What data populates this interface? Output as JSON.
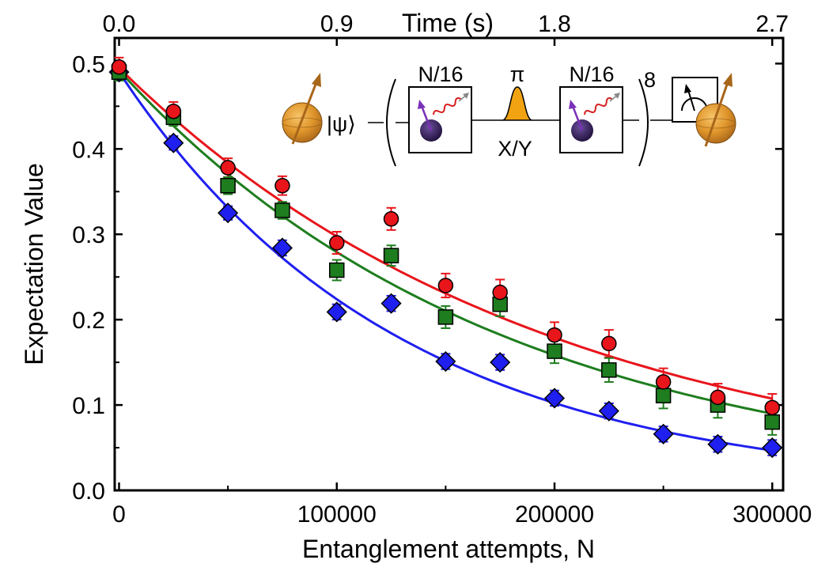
{
  "chart_data": {
    "type": "scatter",
    "xlabel": "Entanglement attempts, N",
    "ylabel": "Expectation Value",
    "top_xlabel": "Time (s)",
    "xlim": [
      -2000,
      305000
    ],
    "ylim": [
      0.0,
      0.53
    ],
    "x_ticks": [
      0,
      100000,
      200000,
      300000
    ],
    "x_tick_labels": [
      "0",
      "100000",
      "200000",
      "300000"
    ],
    "y_ticks": [
      0.0,
      0.1,
      0.2,
      0.3,
      0.4,
      0.5
    ],
    "y_tick_labels": [
      "0.0",
      "0.1",
      "0.2",
      "0.3",
      "0.4",
      "0.5"
    ],
    "top_ticks": [
      0,
      100000,
      200000,
      300000
    ],
    "top_tick_labels": [
      "0.0",
      "0.9",
      "1.8",
      "2.7"
    ],
    "grid": false,
    "x": [
      0,
      25000,
      50000,
      75000,
      100000,
      125000,
      150000,
      175000,
      200000,
      225000,
      250000,
      275000,
      300000
    ],
    "series": [
      {
        "color": "#e8151b",
        "marker": "circle",
        "values": [
          0.496,
          0.444,
          0.378,
          0.357,
          0.29,
          0.318,
          0.24,
          0.232,
          0.182,
          0.172,
          0.127,
          0.109,
          0.097
        ],
        "errors": [
          0.011,
          0.011,
          0.011,
          0.011,
          0.013,
          0.013,
          0.014,
          0.015,
          0.015,
          0.016,
          0.016,
          0.016,
          0.016
        ],
        "fit": {
          "start": 0.495,
          "rate": 5.09e-06
        }
      },
      {
        "color": "#1e7d1e",
        "marker": "square",
        "values": [
          0.49,
          0.437,
          0.357,
          0.328,
          0.258,
          0.275,
          0.203,
          0.218,
          0.163,
          0.141,
          0.111,
          0.1,
          0.08
        ],
        "errors": [
          0.01,
          0.01,
          0.01,
          0.01,
          0.012,
          0.012,
          0.013,
          0.014,
          0.014,
          0.014,
          0.015,
          0.015,
          0.015
        ],
        "fit": {
          "start": 0.492,
          "rate": 5.67e-06
        }
      },
      {
        "color": "#1f1ff0",
        "marker": "diamond",
        "values": [
          0.49,
          0.407,
          0.325,
          0.284,
          0.209,
          0.219,
          0.151,
          0.15,
          0.108,
          0.093,
          0.066,
          0.054,
          0.05
        ],
        "errors": [
          0.008,
          0.008,
          0.008,
          0.009,
          0.009,
          0.009,
          0.009,
          0.009,
          0.009,
          0.009,
          0.009,
          0.009,
          0.009
        ],
        "fit": {
          "start": 0.49,
          "rate": 7.83e-06
        }
      }
    ]
  },
  "inset": {
    "state_label": "|ψ⟩",
    "block1_label": "N/16",
    "block2_label": "N/16",
    "pulse_label": "π",
    "axis_label": "X/Y",
    "repeat_label": "8"
  }
}
